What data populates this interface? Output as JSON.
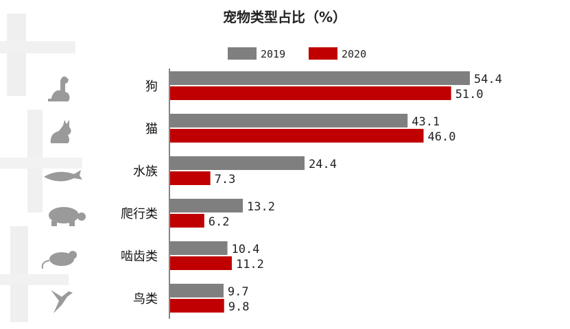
{
  "chart_data": {
    "type": "bar",
    "orientation": "horizontal",
    "title": "宠物类型占比（%）",
    "categories": [
      "狗",
      "猫",
      "水族",
      "爬行类",
      "啮齿类",
      "鸟类"
    ],
    "category_icons": [
      "dog-icon",
      "cat-icon",
      "fish-icon",
      "turtle-icon",
      "rodent-icon",
      "bird-icon"
    ],
    "series": [
      {
        "name": "2019",
        "color": "#7f7f7f",
        "values": [
          54.4,
          43.1,
          24.4,
          13.2,
          10.4,
          9.7
        ]
      },
      {
        "name": "2020",
        "color": "#c00000",
        "values": [
          51.0,
          46.0,
          7.3,
          6.2,
          11.2,
          9.8
        ]
      }
    ],
    "legend_position": "top-center",
    "grid": false,
    "xlim": [
      0,
      60
    ]
  },
  "colors": {
    "icon": "#9a9a9a",
    "watermark": "#ececec"
  }
}
